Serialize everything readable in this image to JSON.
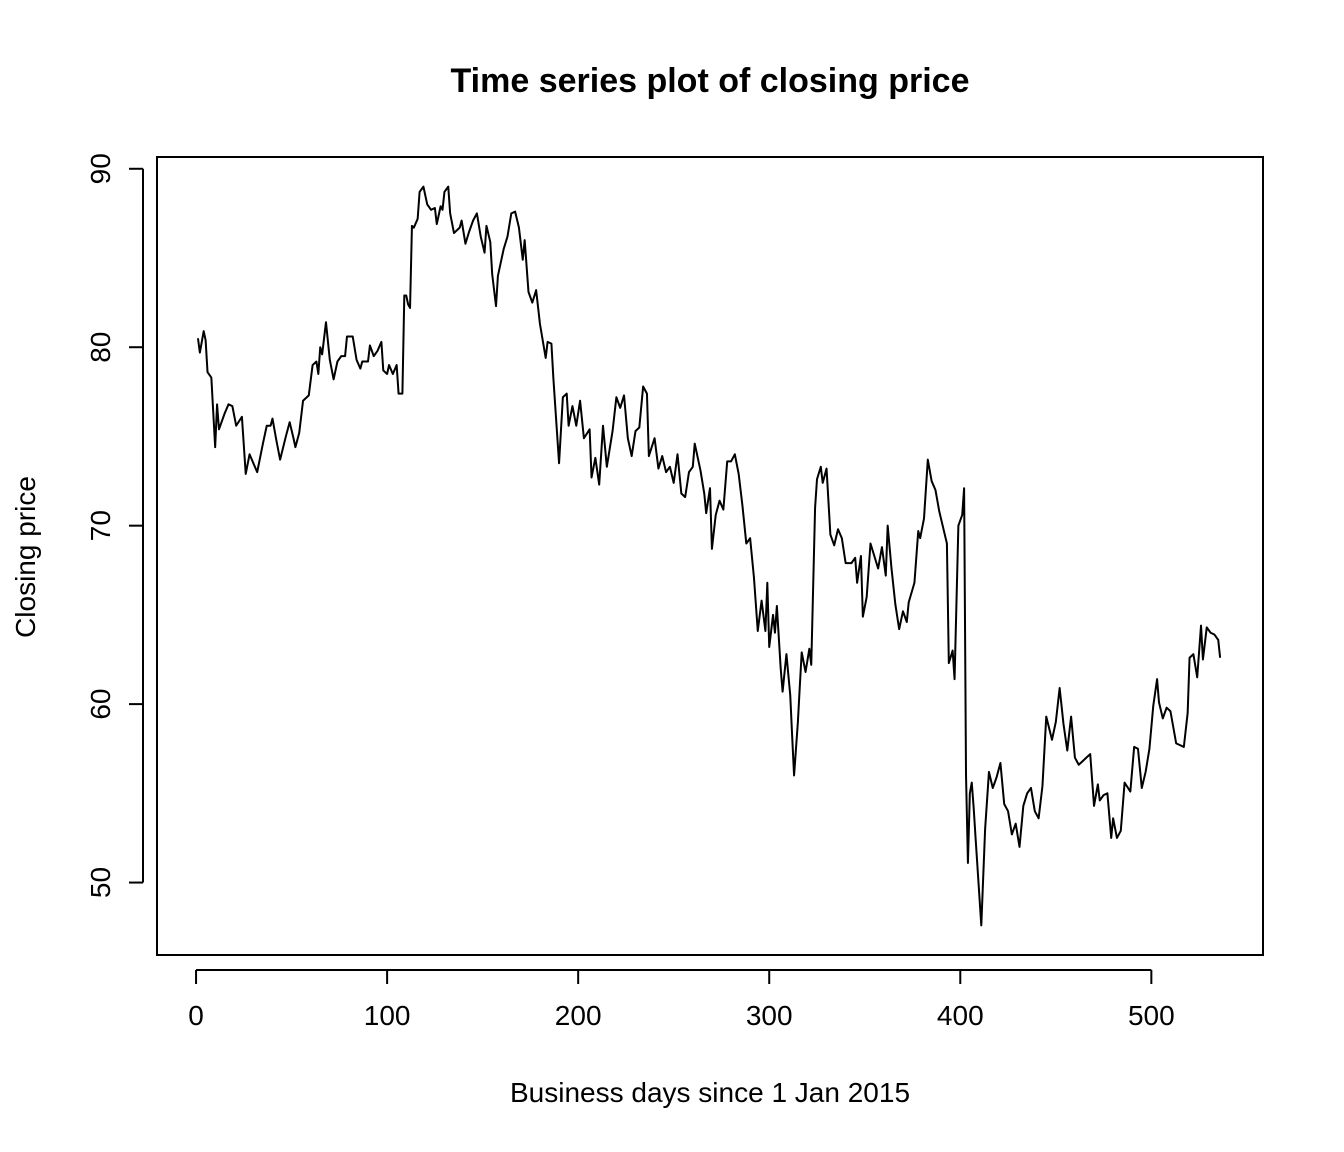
{
  "chart_data": {
    "type": "line",
    "title": "Time series plot of closing price",
    "x_label": "Business days since 1 Jan 2015",
    "y_label": "Closing price",
    "xlim": [
      -20.44,
      558.44
    ],
    "ylim": [
      45.94,
      90.66
    ],
    "xticks": [
      0,
      100,
      200,
      300,
      400,
      500
    ],
    "yticks": [
      50,
      60,
      70,
      80,
      90
    ],
    "series": [
      {
        "color": "#000000",
        "x": [
          1,
          2,
          4,
          5,
          6,
          8,
          10,
          11,
          12,
          15,
          17,
          19,
          21,
          24,
          26,
          28,
          30,
          32,
          35,
          37,
          39,
          40,
          42,
          44,
          47,
          49,
          51,
          52,
          54,
          56,
          59,
          61,
          63,
          64,
          65,
          66,
          68,
          70,
          72,
          74,
          76,
          78,
          79,
          82,
          84,
          86,
          87,
          90,
          91,
          93,
          95,
          97,
          98,
          100,
          101,
          103,
          105,
          106,
          108,
          109,
          110,
          111,
          112,
          113,
          114,
          116,
          117,
          119,
          121,
          123,
          125,
          126,
          128,
          129,
          130,
          132,
          133,
          135,
          138,
          139,
          141,
          143,
          145,
          147,
          149,
          151,
          152,
          154,
          155,
          157,
          158,
          161,
          163,
          165,
          167,
          169,
          171,
          172,
          174,
          176,
          178,
          180,
          183,
          184,
          186,
          187,
          190,
          192,
          194,
          195,
          197,
          199,
          201,
          203,
          206,
          207,
          209,
          211,
          213,
          215,
          218,
          220,
          222,
          224,
          226,
          228,
          230,
          232,
          234,
          236,
          237,
          240,
          242,
          244,
          246,
          248,
          250,
          252,
          254,
          256,
          258,
          260,
          261,
          264,
          266,
          267,
          269,
          270,
          272,
          274,
          276,
          278,
          280,
          282,
          284,
          286,
          288,
          290,
          292,
          294,
          296,
          298,
          299,
          300,
          302,
          303,
          304,
          306,
          307,
          309,
          311,
          312,
          313,
          315,
          316,
          317,
          319,
          321,
          322,
          324,
          325,
          327,
          328,
          330,
          332,
          334,
          336,
          338,
          340,
          343,
          345,
          346,
          348,
          349,
          351,
          353,
          355,
          357,
          359,
          361,
          362,
          364,
          366,
          368,
          370,
          372,
          373,
          376,
          378,
          379,
          381,
          383,
          385,
          387,
          389,
          391,
          393,
          394,
          396,
          397,
          399,
          401,
          402,
          403,
          404,
          405,
          406,
          407,
          408,
          411,
          413,
          415,
          417,
          419,
          421,
          423,
          425,
          427,
          429,
          431,
          433,
          435,
          437,
          439,
          441,
          443,
          445,
          448,
          450,
          452,
          454,
          456,
          458,
          460,
          462,
          464,
          466,
          468,
          470,
          472,
          473,
          475,
          477,
          479,
          480,
          482,
          484,
          486,
          489,
          491,
          493,
          495,
          497,
          499,
          501,
          503,
          504,
          506,
          508,
          510,
          513,
          515,
          517,
          519,
          520,
          522,
          524,
          526,
          527,
          529,
          531,
          533,
          535,
          536
        ],
        "values": [
          80.5,
          79.7,
          80.9,
          80.4,
          78.6,
          78.3,
          74.4,
          76.8,
          75.4,
          76.3,
          76.8,
          76.7,
          75.6,
          76.1,
          72.9,
          74.0,
          73.5,
          73.0,
          74.6,
          75.6,
          75.6,
          76.0,
          74.8,
          73.7,
          75.0,
          75.8,
          74.9,
          74.4,
          75.2,
          77.0,
          77.3,
          79.0,
          79.2,
          78.5,
          80.0,
          79.6,
          81.4,
          79.3,
          78.2,
          79.2,
          79.5,
          79.5,
          80.6,
          80.6,
          79.3,
          78.8,
          79.2,
          79.2,
          80.1,
          79.5,
          79.8,
          80.3,
          78.7,
          78.5,
          79.0,
          78.5,
          79.0,
          77.4,
          77.4,
          82.9,
          82.9,
          82.4,
          82.2,
          86.8,
          86.7,
          87.2,
          88.7,
          89.0,
          88.0,
          87.7,
          87.8,
          86.9,
          87.9,
          87.7,
          88.7,
          89.0,
          87.5,
          86.4,
          86.7,
          87.1,
          85.8,
          86.5,
          87.1,
          87.5,
          86.2,
          85.3,
          86.8,
          85.9,
          84.1,
          82.3,
          84.0,
          85.5,
          86.2,
          87.5,
          87.6,
          86.7,
          84.9,
          86.0,
          83.1,
          82.5,
          83.2,
          81.3,
          79.4,
          80.3,
          80.2,
          78.3,
          73.5,
          77.2,
          77.4,
          75.6,
          76.7,
          75.6,
          77.0,
          74.9,
          75.4,
          72.7,
          73.8,
          72.3,
          75.6,
          73.3,
          75.3,
          77.2,
          76.6,
          77.3,
          74.9,
          73.9,
          75.3,
          75.5,
          77.8,
          77.4,
          73.9,
          74.9,
          73.2,
          73.9,
          73.0,
          73.3,
          72.4,
          74.0,
          71.8,
          71.6,
          73.0,
          73.3,
          74.6,
          73.1,
          71.8,
          70.7,
          72.1,
          68.7,
          70.6,
          71.4,
          70.9,
          73.6,
          73.6,
          74.0,
          72.9,
          71.1,
          69.0,
          69.3,
          67.1,
          64.1,
          65.8,
          64.1,
          66.8,
          63.2,
          65.0,
          64.0,
          65.5,
          62.0,
          60.7,
          62.8,
          60.5,
          58.2,
          56.0,
          59.0,
          61.0,
          62.9,
          61.8,
          63.1,
          62.2,
          71.0,
          72.6,
          73.3,
          72.4,
          73.2,
          69.5,
          68.9,
          69.8,
          69.3,
          67.9,
          67.9,
          68.2,
          66.8,
          68.3,
          64.9,
          66.0,
          69.0,
          68.3,
          67.6,
          68.8,
          67.2,
          70.0,
          67.6,
          65.6,
          64.2,
          65.2,
          64.6,
          65.7,
          66.8,
          69.7,
          69.3,
          70.4,
          73.7,
          72.5,
          72.0,
          70.8,
          69.9,
          69.0,
          62.3,
          63.0,
          61.4,
          70.0,
          70.6,
          72.1,
          56.0,
          51.1,
          55.0,
          55.6,
          54.2,
          52.5,
          47.6,
          53.0,
          56.2,
          55.3,
          55.9,
          56.7,
          54.4,
          54.0,
          52.7,
          53.3,
          52.0,
          54.3,
          55.0,
          55.3,
          54.0,
          53.6,
          55.4,
          59.3,
          58.0,
          59.0,
          60.9,
          58.9,
          57.4,
          59.3,
          57.0,
          56.6,
          56.8,
          57.0,
          57.2,
          54.3,
          55.5,
          54.6,
          54.9,
          55.0,
          52.5,
          53.6,
          52.5,
          52.9,
          55.6,
          55.1,
          57.6,
          57.5,
          55.3,
          56.2,
          57.5,
          59.9,
          61.4,
          60.1,
          59.2,
          59.8,
          59.6,
          57.8,
          57.7,
          57.6,
          59.5,
          62.6,
          62.8,
          61.5,
          64.4,
          62.5,
          64.3,
          64.0,
          63.9,
          63.6,
          62.6
        ]
      }
    ]
  }
}
